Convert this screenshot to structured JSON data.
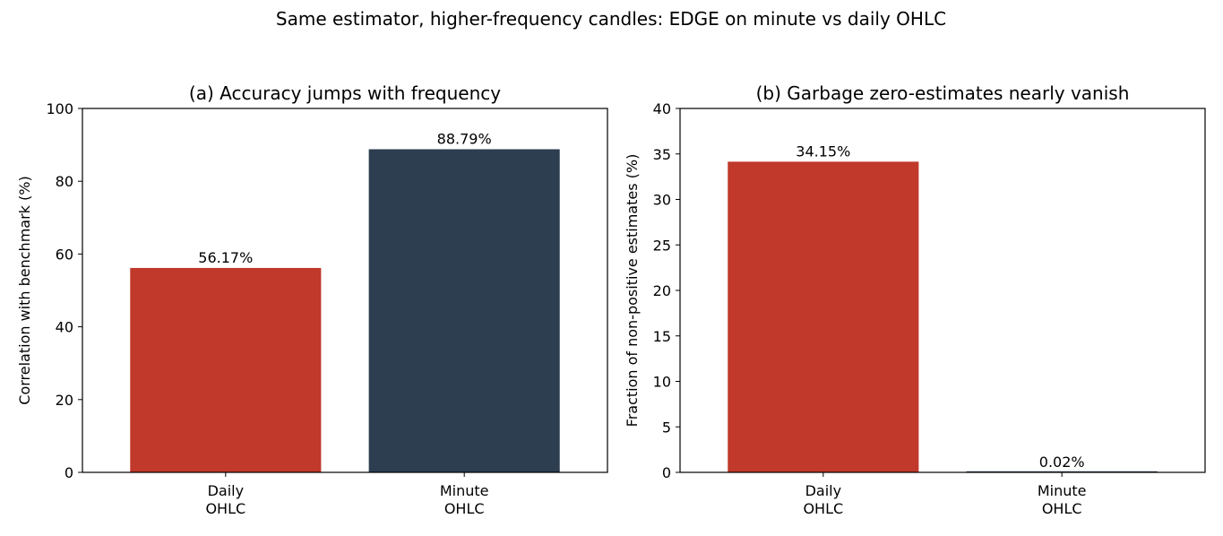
{
  "figure": {
    "suptitle": "Same estimator, higher-frequency candles: EDGE on minute vs daily OHLC"
  },
  "chart_data": [
    {
      "type": "bar",
      "title": "(a) Accuracy jumps with frequency",
      "xlabel": "",
      "ylabel": "Correlation with benchmark (%)",
      "categories": [
        "Daily\nOHLC",
        "Minute\nOHLC"
      ],
      "values": [
        56.17,
        88.79
      ],
      "value_labels": [
        "56.17%",
        "88.79%"
      ],
      "bar_colors": [
        "#c0392b",
        "#2c3e50"
      ],
      "ylim": [
        0,
        100
      ],
      "yticks": [
        0,
        20,
        40,
        60,
        80,
        100
      ],
      "grid": false,
      "legend": "none"
    },
    {
      "type": "bar",
      "title": "(b) Garbage zero-estimates nearly vanish",
      "xlabel": "",
      "ylabel": "Fraction of non-positive estimates (%)",
      "categories": [
        "Daily\nOHLC",
        "Minute\nOHLC"
      ],
      "values": [
        34.15,
        0.02
      ],
      "value_labels": [
        "34.15%",
        "0.02%"
      ],
      "bar_colors": [
        "#c0392b",
        "#2c3e50"
      ],
      "ylim": [
        0,
        40
      ],
      "yticks": [
        0,
        5,
        10,
        15,
        20,
        25,
        30,
        35,
        40
      ],
      "grid": false,
      "legend": "none"
    }
  ]
}
